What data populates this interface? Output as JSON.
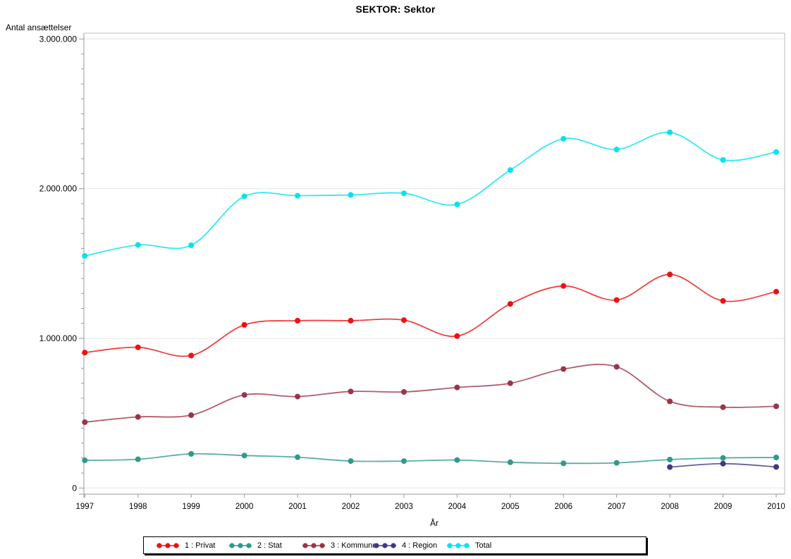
{
  "title": "SEKTOR: Sektor",
  "y_axis": {
    "label": "Antal ansættelser",
    "tick_labels": [
      "0",
      "1.000.000",
      "2.000.000",
      "3.000.000"
    ],
    "tick_values": [
      0,
      1000000,
      2000000,
      3000000
    ],
    "minor_tick_step": 100000
  },
  "x_axis": {
    "label": "År",
    "tick_labels": [
      "1997",
      "1998",
      "1999",
      "2000",
      "2001",
      "2002",
      "2003",
      "2004",
      "2005",
      "2006",
      "2007",
      "2008",
      "2009",
      "2010"
    ]
  },
  "colors": {
    "privat": "#ee1111",
    "stat": "#2d9a8d",
    "kommune": "#9c3449",
    "region": "#3f3a82",
    "total": "#00e4ee",
    "gridline": "#e6e6e6",
    "axis": "#999999",
    "plot_border": "#bbbbbb"
  },
  "chart_data": {
    "type": "line",
    "title": "SEKTOR: Sektor",
    "xlabel": "År",
    "ylabel": "Antal ansættelser",
    "x": [
      1997,
      1998,
      1999,
      2000,
      2001,
      2002,
      2003,
      2004,
      2005,
      2006,
      2007,
      2008,
      2009,
      2010
    ],
    "ylim": [
      0,
      3000000
    ],
    "grid": "horizontal",
    "legend_position": "bottom",
    "interpolation": "spline",
    "series": [
      {
        "name": "1 : Privat",
        "color": "#ee1111",
        "values": [
          905000,
          940000,
          885000,
          1090000,
          1118000,
          1118000,
          1122000,
          1015000,
          1230000,
          1350000,
          1256000,
          1427000,
          1250000,
          1312000
        ]
      },
      {
        "name": "2 : Stat",
        "color": "#2d9a8d",
        "values": [
          185000,
          192000,
          228000,
          217000,
          206000,
          180000,
          180000,
          187000,
          172000,
          165000,
          168000,
          190000,
          201000,
          204000
        ]
      },
      {
        "name": "3 : Kommune",
        "color": "#9c3449",
        "values": [
          440000,
          475000,
          487000,
          622000,
          611000,
          645000,
          642000,
          672000,
          700000,
          795000,
          810000,
          579000,
          540000,
          546000
        ]
      },
      {
        "name": "4 : Region",
        "color": "#3f3a82",
        "values": [
          null,
          null,
          null,
          null,
          null,
          null,
          null,
          null,
          null,
          null,
          null,
          140000,
          163000,
          141000
        ]
      },
      {
        "name": "Total",
        "color": "#00e4ee",
        "values": [
          1551000,
          1624000,
          1622000,
          1949000,
          1953000,
          1958000,
          1969000,
          1895000,
          2124000,
          2333000,
          2262000,
          2376000,
          2192000,
          2245000
        ]
      }
    ]
  }
}
